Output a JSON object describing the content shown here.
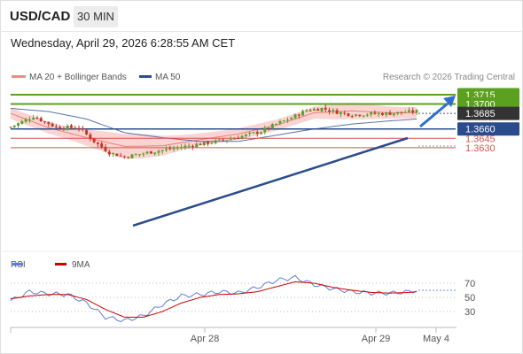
{
  "header": {
    "pair": "USD/CAD",
    "timeframe": "30 MIN"
  },
  "date_text": "Wednesday, April 29, 2026 6:28:55 AM CET",
  "legend": [
    {
      "label": "MA 20 + Bollinger Bands",
      "color": "#f28b82"
    },
    {
      "label": "MA 50",
      "color": "#2b4c8c"
    }
  ],
  "credit": "Research © 2026 Trading Central",
  "colors": {
    "resistance": "#5ba01e",
    "pivot": "#2b4c8c",
    "support": "#d9534f",
    "up_candle": "#5aa02c",
    "down_candle": "#c0392b",
    "band": "#f8c6c2",
    "rsi": "#5b7fd6",
    "rsi_ma": "#cc0000"
  },
  "chart_data": [
    {
      "type": "line",
      "kind": "candlestick price chart with support/resistance levels",
      "x_labels": [
        "Apr 28",
        "Apr 29",
        "May 4"
      ],
      "series": [
        {
          "name": "MA 20 + Bollinger Bands",
          "x": [
            0,
            10,
            20,
            30,
            40,
            50,
            60,
            70,
            80,
            90,
            100,
            107
          ],
          "values": [
            1.3685,
            1.3662,
            1.3646,
            1.3632,
            1.3633,
            1.3643,
            1.3652,
            1.3666,
            1.3686,
            1.3689,
            1.3686,
            1.3686
          ]
        },
        {
          "name": "MA 50",
          "x": [
            0,
            10,
            20,
            30,
            40,
            50,
            60,
            70,
            80,
            90,
            100,
            107
          ],
          "values": [
            1.3693,
            1.3688,
            1.3676,
            1.3654,
            1.3646,
            1.364,
            1.364,
            1.365,
            1.366,
            1.3668,
            1.3673,
            1.3676
          ]
        },
        {
          "name": "close",
          "x": [
            0,
            6,
            12,
            18,
            22,
            26,
            30,
            36,
            42,
            48,
            54,
            58,
            62,
            66,
            70,
            74,
            78,
            82,
            86,
            90,
            94,
            100,
            104,
            107
          ],
          "values": [
            1.3663,
            1.368,
            1.3663,
            1.3662,
            1.364,
            1.3622,
            1.3615,
            1.3622,
            1.3628,
            1.3634,
            1.364,
            1.3644,
            1.365,
            1.3656,
            1.3668,
            1.3678,
            1.369,
            1.3693,
            1.3687,
            1.3683,
            1.3684,
            1.3685,
            1.3687,
            1.3688
          ]
        }
      ],
      "levels": [
        {
          "label": "1.3715",
          "value": 1.3715,
          "role": "resistance"
        },
        {
          "label": "1.3700",
          "value": 1.37,
          "role": "resistance"
        },
        {
          "label": "1.3685",
          "value": 1.3685,
          "role": "current"
        },
        {
          "label": "1.3660",
          "value": 1.366,
          "role": "pivot"
        },
        {
          "label": "1.3645",
          "value": 1.3645,
          "role": "support"
        },
        {
          "label": "1.3630",
          "value": 1.363,
          "role": "support"
        }
      ]
    },
    {
      "type": "line",
      "kind": "RSI indicator",
      "legend": [
        "RSI",
        "9MA"
      ],
      "y_ticks": [
        "70",
        "50",
        "30"
      ],
      "ylim": [
        15,
        85
      ],
      "series": [
        {
          "name": "RSI",
          "x": [
            0,
            5,
            10,
            15,
            20,
            25,
            30,
            35,
            40,
            45,
            50,
            55,
            60,
            65,
            70,
            75,
            80,
            85,
            90,
            95,
            100,
            105,
            107
          ],
          "values": [
            45,
            58,
            55,
            54,
            42,
            22,
            17,
            24,
            40,
            52,
            54,
            58,
            56,
            64,
            74,
            78,
            68,
            62,
            58,
            56,
            56,
            58,
            60
          ]
        },
        {
          "name": "9MA",
          "x": [
            0,
            5,
            10,
            15,
            20,
            25,
            30,
            35,
            40,
            45,
            50,
            55,
            60,
            65,
            70,
            75,
            80,
            85,
            90,
            95,
            100,
            105,
            107
          ],
          "values": [
            48,
            52,
            54,
            54,
            47,
            33,
            22,
            22,
            30,
            42,
            50,
            54,
            55,
            58,
            65,
            72,
            70,
            64,
            60,
            57,
            56,
            57,
            58
          ]
        }
      ]
    }
  ]
}
